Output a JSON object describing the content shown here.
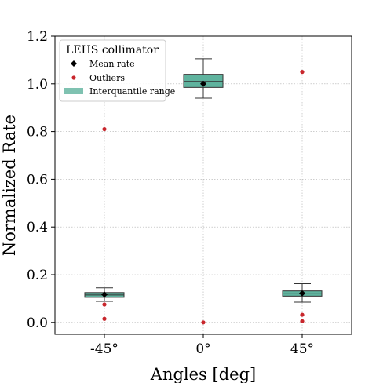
{
  "chart_data": {
    "type": "box",
    "categories": [
      "-45°",
      "0°",
      "45°"
    ],
    "xlabel": "Angles [deg]",
    "ylabel": "Normalized Rate",
    "ylim": [
      -0.05,
      1.2
    ],
    "yticks": [
      "0.0",
      "0.2",
      "0.4",
      "0.6",
      "0.8",
      "1.0",
      "1.2"
    ],
    "grid": true,
    "legend": {
      "title": "LEHS collimator",
      "placement": "top-left",
      "entries": [
        "Mean rate",
        "Outliers",
        "Interquantile range"
      ]
    },
    "colors": {
      "box": "#5fb39e",
      "outlier": "#c8262c",
      "mean": "#000000"
    },
    "boxes": [
      {
        "category": "-45°",
        "whisker_low": 0.088,
        "q1": 0.105,
        "median": 0.115,
        "q3": 0.125,
        "whisker_high": 0.145,
        "mean": 0.117,
        "outliers": [
          0.81,
          0.075,
          0.015
        ]
      },
      {
        "category": "0°",
        "whisker_low": 0.94,
        "q1": 0.985,
        "median": 1.01,
        "q3": 1.04,
        "whisker_high": 1.105,
        "mean": 1.0,
        "outliers": [
          0.0
        ]
      },
      {
        "category": "45°",
        "whisker_low": 0.085,
        "q1": 0.11,
        "median": 0.12,
        "q3": 0.132,
        "whisker_high": 0.162,
        "mean": 0.122,
        "outliers": [
          1.05,
          0.032,
          0.005
        ]
      }
    ]
  }
}
